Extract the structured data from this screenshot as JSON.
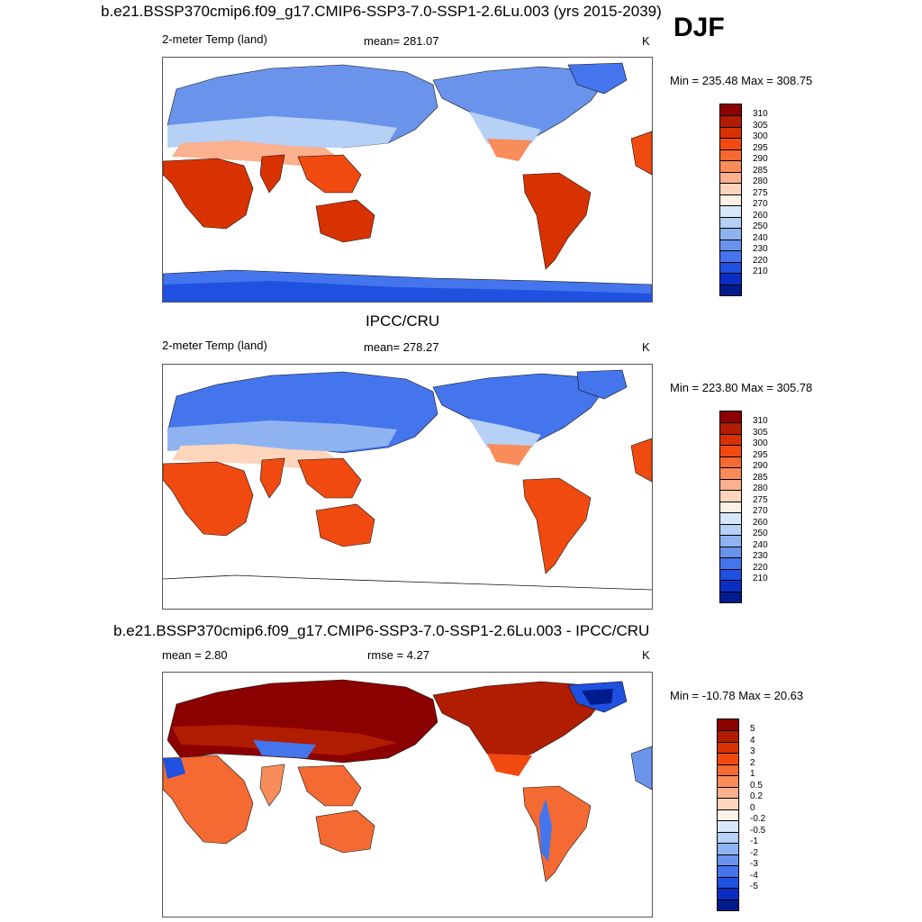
{
  "season": "DJF",
  "panels": [
    {
      "title": "b.e21.BSSP370cmip6.f09_g17.CMIP6-SSP3-7.0-SSP1-2.6Lu.003 (yrs 2015-2039)",
      "left_label": "2-meter Temp (land)",
      "center_label": "mean= 281.07",
      "units": "K",
      "minmax": "Min = 235.48 Max = 308.75"
    },
    {
      "title": "IPCC/CRU",
      "left_label": "2-meter Temp (land)",
      "center_label": "mean= 278.27",
      "units": "K",
      "minmax": "Min = 223.80 Max = 305.78"
    },
    {
      "title": "b.e21.BSSP370cmip6.f09_g17.CMIP6-SSP3-7.0-SSP1-2.6Lu.003 - IPCC/CRU",
      "left_label": "mean =   2.80",
      "center_label": "rmse =   4.27",
      "units": "K",
      "minmax": "Min = -10.78 Max =  20.63"
    }
  ],
  "colorbars": {
    "temp": {
      "labels": [
        "310",
        "305",
        "300",
        "295",
        "290",
        "285",
        "280",
        "275",
        "270",
        "260",
        "250",
        "240",
        "230",
        "220",
        "210"
      ],
      "colors": [
        "#8b0000",
        "#b01d00",
        "#d83200",
        "#f04a10",
        "#f46a32",
        "#f88c5a",
        "#fbb08e",
        "#fdd4bc",
        "#fdf0e4",
        "#d8e8fb",
        "#b6d0f6",
        "#8fb3f0",
        "#6a94ec",
        "#4475ec",
        "#1f50e0",
        "#0a2ec4",
        "#001c8c"
      ]
    },
    "diff": {
      "labels": [
        "5",
        "4",
        "3",
        "2",
        "1",
        "0.5",
        "0.2",
        "0",
        "-0.2",
        "-0.5",
        "-1",
        "-2",
        "-3",
        "-4",
        "-5"
      ],
      "colors": [
        "#8b0000",
        "#b01d00",
        "#d83200",
        "#f04a10",
        "#f46a32",
        "#f88c5a",
        "#fbb08e",
        "#fdd4bc",
        "#fdf0e4",
        "#d8e8fb",
        "#b6d0f6",
        "#8fb3f0",
        "#6a94ec",
        "#4475ec",
        "#1f50e0",
        "#0a2ec4",
        "#001c8c"
      ]
    }
  }
}
